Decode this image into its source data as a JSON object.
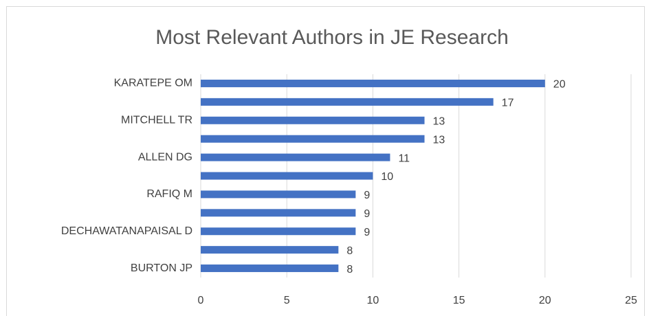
{
  "chart_data": {
    "type": "barh",
    "title": "Most Relevant Authors in JE Research",
    "categories": [
      "KARATEPE OM",
      null,
      "MITCHELL TR",
      null,
      "ALLEN DG",
      null,
      "RAFIQ M",
      null,
      "DECHAWATANAPAISAL D",
      null,
      "BURTON JP"
    ],
    "values": [
      20,
      17,
      13,
      13,
      11,
      10,
      9,
      9,
      9,
      8,
      8
    ],
    "color": "#4472c4",
    "xlim": [
      0,
      25
    ],
    "xticks": [
      0,
      5,
      10,
      15,
      20,
      25
    ],
    "grid": true
  }
}
